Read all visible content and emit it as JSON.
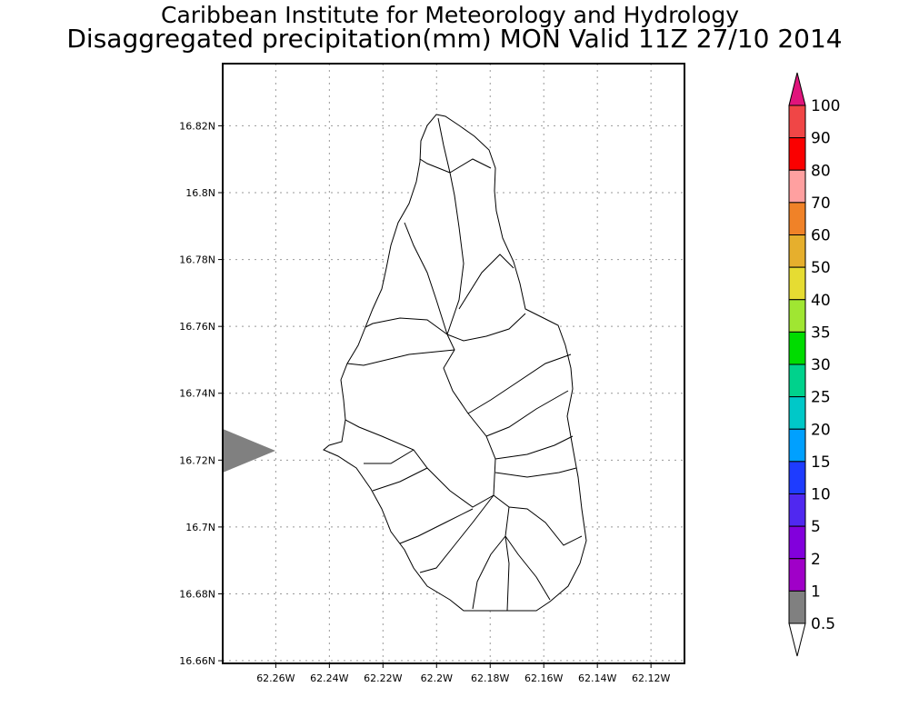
{
  "header": {
    "title": "Caribbean Institute for Meteorology and Hydrology",
    "subtitle": "Disaggregated precipitation(mm) MON Valid 11Z 27/10 2014"
  },
  "map": {
    "region": "Montserrat",
    "lat_ticks": [
      "16.82N",
      "16.8N",
      "16.78N",
      "16.76N",
      "16.74N",
      "16.72N",
      "16.7N",
      "16.68N",
      "16.66N"
    ],
    "lat_values": [
      16.82,
      16.8,
      16.78,
      16.76,
      16.74,
      16.72,
      16.7,
      16.68,
      16.66
    ],
    "lon_ticks": [
      "62.26W",
      "62.24W",
      "62.22W",
      "62.2W",
      "62.18W",
      "62.16W",
      "62.14W",
      "62.12W"
    ],
    "lon_values": [
      -62.26,
      -62.24,
      -62.22,
      -62.2,
      -62.18,
      -62.16,
      -62.14,
      -62.12
    ],
    "lat_range": [
      16.6592,
      16.8386
    ],
    "lon_range": [
      -62.2798,
      -62.1075
    ],
    "grid": true,
    "fill_color": "#ffffff",
    "marker_color": "#808080"
  },
  "colorbar": {
    "labels": [
      "100",
      "90",
      "80",
      "70",
      "60",
      "50",
      "40",
      "35",
      "30",
      "25",
      "20",
      "15",
      "10",
      "5",
      "2",
      "1",
      "0.5"
    ],
    "over_color": "#e0147c",
    "colors": [
      "#f04646",
      "#fa0000",
      "#ffa0a0",
      "#f08228",
      "#e6af2d",
      "#e6dc32",
      "#a0e632",
      "#00dc00",
      "#00d28c",
      "#00c8c8",
      "#00a0ff",
      "#1e3cff",
      "#5028f0",
      "#8200dc",
      "#a000c8",
      "#808080"
    ],
    "under_color": "#ffffff"
  }
}
